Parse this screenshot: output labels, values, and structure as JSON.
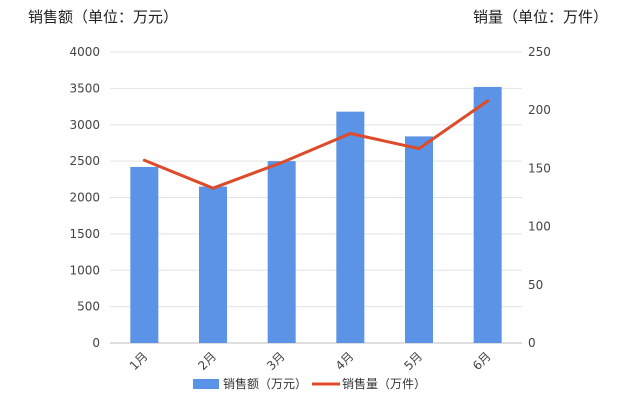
{
  "chart_data": {
    "type": "bar",
    "categories": [
      "1月",
      "2月",
      "3月",
      "4月",
      "5月",
      "6月"
    ],
    "series": [
      {
        "name": "销售额（万元）",
        "type": "bar",
        "axis": "left",
        "color": "#5b93e6",
        "values": [
          2420,
          2150,
          2500,
          3180,
          2840,
          3520
        ]
      },
      {
        "name": "销售量（万件）",
        "type": "line",
        "axis": "right",
        "color": "#dd4b2b",
        "values": [
          157,
          133,
          155,
          180,
          167,
          208
        ]
      }
    ],
    "y_left": {
      "title": "销售额（单位：万元）",
      "range": [
        0,
        4000
      ],
      "ticks": [
        0,
        500,
        1000,
        1500,
        2000,
        2500,
        3000,
        3500,
        4000
      ]
    },
    "y_right": {
      "title": "销量（单位：万件）",
      "range": [
        0,
        250
      ],
      "ticks": [
        0,
        50,
        100,
        150,
        200,
        250
      ]
    },
    "grid": true,
    "legend_position": "bottom"
  }
}
